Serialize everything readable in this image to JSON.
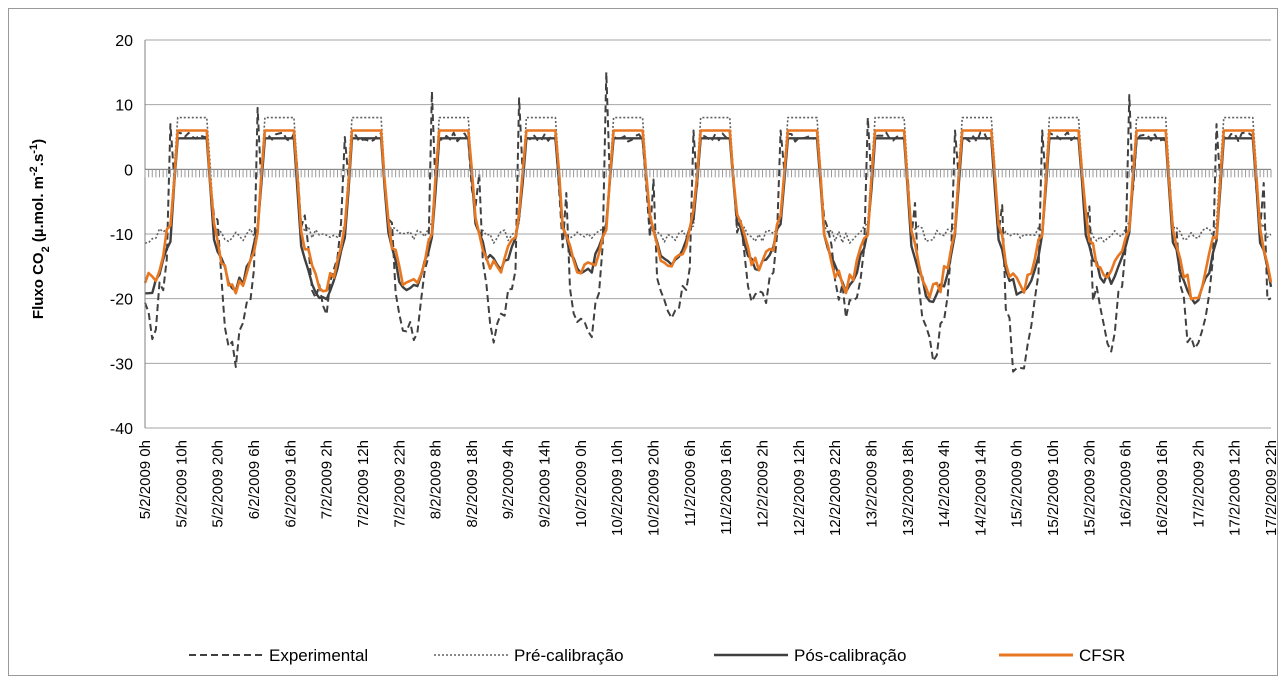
{
  "chart_data": {
    "type": "line",
    "ylabel": {
      "main": "Fluxo CO",
      "sub2": "2",
      "mid": " (µ.mol. m",
      "sup1": "-2",
      "mid2": ".s",
      "sup2": "-1",
      "end": ")"
    },
    "ylim": [
      -40,
      20
    ],
    "yticks": [
      20,
      10,
      0,
      -10,
      -20,
      -30,
      -40
    ],
    "grid": true,
    "legend_position": "bottom",
    "x_categories": [
      "5/2/2009 0h",
      "5/2/2009 10h",
      "5/2/2009 20h",
      "6/2/2009 6h",
      "6/2/2009 16h",
      "7/2/2009 2h",
      "7/2/2009 12h",
      "7/2/2009 22h",
      "8/2/2009 8h",
      "8/2/2009 18h",
      "9/2/2009 4h",
      "9/2/2009 14h",
      "10/2/2009 0h",
      "10/2/2009 10h",
      "10/2/2009 20h",
      "11/2/2009 6h",
      "11/2/2009 16h",
      "12/2/2009 2h",
      "12/2/2009 12h",
      "12/2/2009 22h",
      "13/2/2009 8h",
      "13/2/2009 18h",
      "14/2/2009 4h",
      "14/2/2009 14h",
      "15/2/2009 0h",
      "15/2/2009 10h",
      "15/2/2009 20h",
      "16/2/2009 6h",
      "16/2/2009 16h",
      "17/2/2009 2h",
      "17/2/2009 12h",
      "17/2/2009 22h"
    ],
    "x_hours_range": [
      0,
      310
    ],
    "series": [
      {
        "name": "Experimental",
        "color": "#404040",
        "style": "dashed"
      },
      {
        "name": "Pré-calibração",
        "color": "#606060",
        "style": "dotted"
      },
      {
        "name": "Pós-calibração",
        "color": "#404040",
        "style": "solid"
      },
      {
        "name": "CFSR",
        "color": "#e87722",
        "style": "solid"
      }
    ],
    "daily_profile": {
      "pre_calibracao_day": 8,
      "pre_calibracao_night": -9,
      "pos_calibracao_day": 4.8,
      "pos_calibracao_night_min": [
        -19,
        -18,
        -20,
        -19,
        -15,
        -16,
        -15,
        -15,
        -18,
        -20,
        -19,
        -17,
        -20
      ],
      "cfsr_day": 6,
      "cfsr_night_min": [
        -17,
        -19,
        -18,
        -18,
        -15,
        -16,
        -15,
        -15,
        -18,
        -19,
        -18,
        -16,
        -19
      ],
      "experimental_night_min": [
        -24,
        -28,
        -21,
        -26,
        -25,
        -26,
        -24,
        -21,
        -21,
        -27,
        -32,
        -26,
        -27
      ],
      "experimental_spikes": [
        7,
        9.5,
        5,
        12,
        11,
        15,
        6,
        6,
        8,
        6,
        6,
        11.5
      ]
    }
  }
}
